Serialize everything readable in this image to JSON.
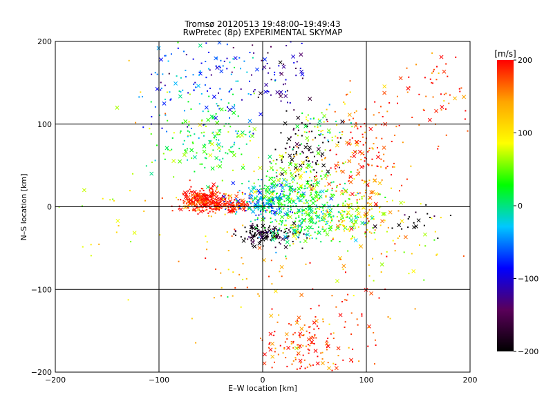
{
  "chart_data": {
    "type": "scatter",
    "title": "Tromsø 20120513 19:48:00–19:49:43",
    "subtitle": "RwPretec (8p) EXPERIMENTAL SKYMAP",
    "xlabel": "E–W location [km]",
    "ylabel": "N–S location [km]",
    "xlim": [
      -200,
      200
    ],
    "ylim": [
      -200,
      200
    ],
    "x_ticks": [
      -200,
      -100,
      0,
      100,
      200
    ],
    "y_ticks": [
      -200,
      -100,
      0,
      100,
      200
    ],
    "grid": true,
    "marker_styles": [
      "dot",
      "x"
    ],
    "colorbar": {
      "label": "[m/s]",
      "range": [
        -200,
        200
      ],
      "ticks": [
        -200,
        -100,
        0,
        100,
        200
      ],
      "colors": [
        "#000000",
        "#5a005a",
        "#0000ff",
        "#00c8ff",
        "#00ff00",
        "#ffff00",
        "#ffa500",
        "#ff0000"
      ]
    },
    "clusters": [
      {
        "x": -55,
        "y": 8,
        "spread_x": 12,
        "spread_y": 7,
        "velocity": 195,
        "count": 320
      },
      {
        "x": -30,
        "y": 3,
        "spread_x": 12,
        "spread_y": 5,
        "velocity": 185,
        "count": 90
      },
      {
        "x": 0,
        "y": 5,
        "spread_x": 14,
        "spread_y": 10,
        "velocity": -40,
        "count": 150
      },
      {
        "x": 15,
        "y": 12,
        "spread_x": 10,
        "spread_y": 10,
        "velocity": 10,
        "count": 80
      },
      {
        "x": 45,
        "y": 0,
        "spread_x": 22,
        "spread_y": 18,
        "velocity": 20,
        "count": 260
      },
      {
        "x": 85,
        "y": -10,
        "spread_x": 18,
        "spread_y": 15,
        "velocity": 80,
        "count": 120
      },
      {
        "x": 5,
        "y": -33,
        "spread_x": 15,
        "spread_y": 6,
        "velocity": -190,
        "count": 160
      },
      {
        "x": 35,
        "y": -25,
        "spread_x": 15,
        "spread_y": 10,
        "velocity": 20,
        "count": 90
      },
      {
        "x": -50,
        "y": 80,
        "spread_x": 25,
        "spread_y": 25,
        "velocity": 20,
        "count": 160
      },
      {
        "x": -55,
        "y": 160,
        "spread_x": 30,
        "spread_y": 30,
        "velocity": -60,
        "count": 140
      },
      {
        "x": 40,
        "y": 70,
        "spread_x": 15,
        "spread_y": 20,
        "velocity": -190,
        "count": 90
      },
      {
        "x": 55,
        "y": 95,
        "spread_x": 12,
        "spread_y": 12,
        "velocity": 40,
        "count": 50
      },
      {
        "x": 15,
        "y": 165,
        "spread_x": 15,
        "spread_y": 25,
        "velocity": -110,
        "count": 60
      },
      {
        "x": 90,
        "y": 60,
        "spread_x": 20,
        "spread_y": 40,
        "velocity": 170,
        "count": 180
      },
      {
        "x": 170,
        "y": 140,
        "spread_x": 25,
        "spread_y": 30,
        "velocity": 190,
        "count": 70
      },
      {
        "x": 35,
        "y": -170,
        "spread_x": 20,
        "spread_y": 20,
        "velocity": 180,
        "count": 120
      },
      {
        "x": 80,
        "y": -140,
        "spread_x": 30,
        "spread_y": 40,
        "velocity": 175,
        "count": 70
      },
      {
        "x": 120,
        "y": -40,
        "spread_x": 30,
        "spread_y": 30,
        "velocity": 100,
        "count": 60
      },
      {
        "x": 150,
        "y": -20,
        "spread_x": 15,
        "spread_y": 15,
        "velocity": -200,
        "count": 20
      },
      {
        "x": -140,
        "y": 20,
        "spread_x": 45,
        "spread_y": 80,
        "velocity": 90,
        "count": 40
      },
      {
        "x": 30,
        "y": 40,
        "spread_x": 20,
        "spread_y": 15,
        "velocity": 60,
        "count": 100
      },
      {
        "x": -20,
        "y": -80,
        "spread_x": 30,
        "spread_y": 30,
        "velocity": 140,
        "count": 40
      }
    ]
  }
}
